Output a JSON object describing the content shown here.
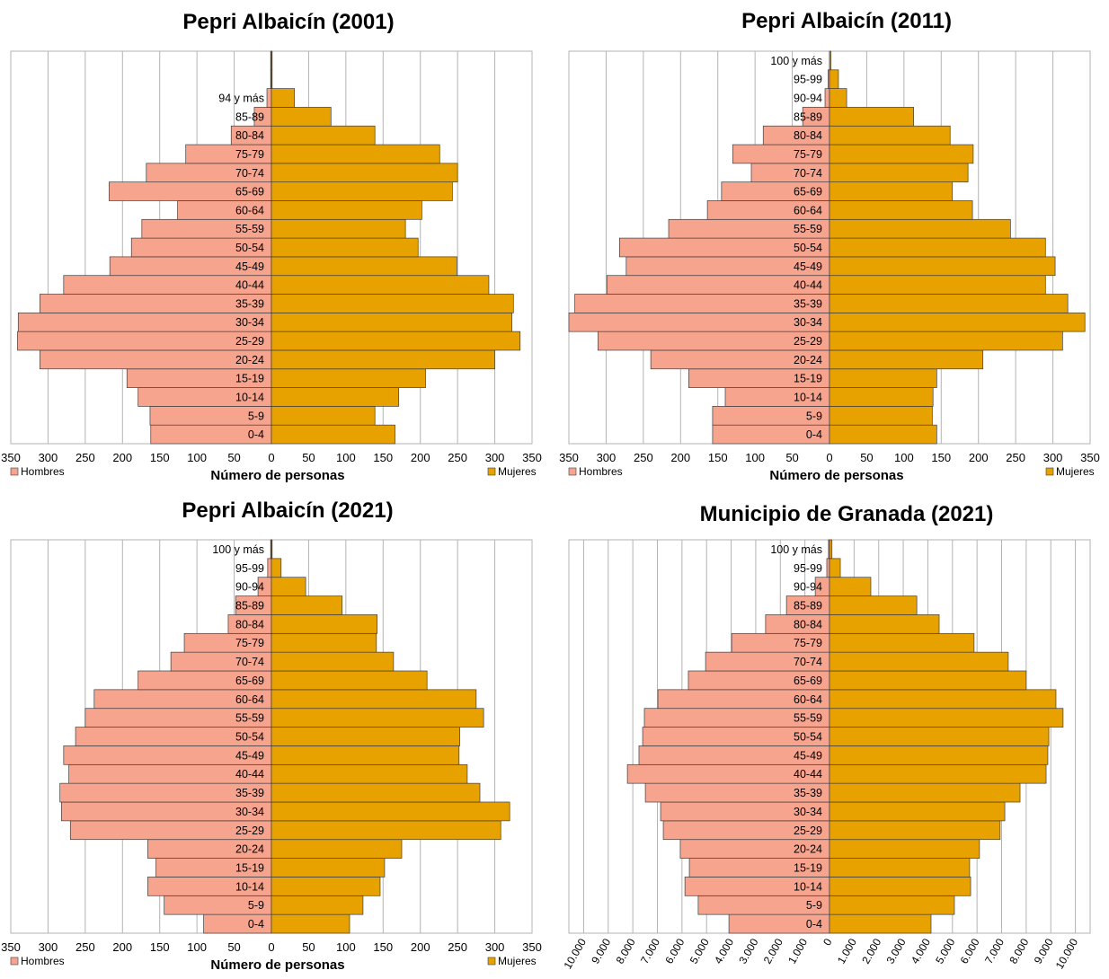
{
  "chart_data": [
    {
      "type": "bar",
      "orientation": "horizontal",
      "mirrored": true,
      "title": "Pepri Albaicín (2001)",
      "xlabel": "Número de personas",
      "xlim": [
        -350,
        350
      ],
      "xticks": [
        -350,
        -300,
        -250,
        -200,
        -150,
        -100,
        -50,
        0,
        50,
        100,
        150,
        200,
        250,
        300,
        350
      ],
      "xtick_labels": [
        "350",
        "300",
        "250",
        "200",
        "150",
        "100",
        "50",
        "0",
        "50",
        "100",
        "150",
        "200",
        "250",
        "300",
        "350"
      ],
      "grid": true,
      "legend": "bottom",
      "categories": [
        "0-4",
        "5-9",
        "10-14",
        "15-19",
        "20-24",
        "25-29",
        "30-34",
        "35-39",
        "40-44",
        "45-49",
        "50-54",
        "55-59",
        "60-64",
        "65-69",
        "70-74",
        "75-79",
        "80-84",
        "85-89",
        "94 y más",
        "",
        ""
      ],
      "series": [
        {
          "name": "Hombres",
          "side": "left",
          "color": "#F7A48F",
          "values": [
            162,
            163,
            179,
            194,
            311,
            341,
            340,
            311,
            279,
            217,
            188,
            174,
            126,
            218,
            168,
            115,
            54,
            23,
            6,
            1,
            1
          ]
        },
        {
          "name": "Mujeres",
          "side": "right",
          "color": "#E8A200",
          "values": [
            166,
            139,
            171,
            207,
            300,
            334,
            323,
            325,
            292,
            249,
            197,
            180,
            202,
            243,
            250,
            226,
            139,
            80,
            31,
            1,
            1
          ]
        }
      ]
    },
    {
      "type": "bar",
      "orientation": "horizontal",
      "mirrored": true,
      "title": "Pepri Albaicín (2011)",
      "xlabel": "Número de personas",
      "xlim": [
        -350,
        350
      ],
      "xticks": [
        -350,
        -300,
        -250,
        -200,
        -150,
        -100,
        -50,
        0,
        50,
        100,
        150,
        200,
        250,
        300,
        350
      ],
      "xtick_labels": [
        "350",
        "300",
        "250",
        "200",
        "150",
        "100",
        "50",
        "0",
        "50",
        "100",
        "150",
        "200",
        "250",
        "300",
        "350"
      ],
      "grid": true,
      "legend": "bottom",
      "categories": [
        "0-4",
        "5-9",
        "10-14",
        "15-19",
        "20-24",
        "25-29",
        "30-34",
        "35-39",
        "40-44",
        "45-49",
        "50-54",
        "55-59",
        "60-64",
        "65-69",
        "70-74",
        "75-79",
        "80-84",
        "85-89",
        "90-94",
        "95-99",
        "100 y más"
      ],
      "series": [
        {
          "name": "Hombres",
          "side": "left",
          "color": "#F7A48F",
          "values": [
            157,
            157,
            140,
            189,
            240,
            311,
            350,
            342,
            299,
            273,
            282,
            216,
            164,
            145,
            105,
            130,
            89,
            36,
            6,
            2,
            0
          ]
        },
        {
          "name": "Mujeres",
          "side": "right",
          "color": "#E8A200",
          "values": [
            144,
            138,
            139,
            144,
            206,
            313,
            343,
            320,
            290,
            303,
            290,
            243,
            192,
            165,
            186,
            193,
            162,
            113,
            23,
            12,
            2
          ]
        }
      ]
    },
    {
      "type": "bar",
      "orientation": "horizontal",
      "mirrored": true,
      "title": "Pepri Albaicín (2021)",
      "xlabel": "Número de personas",
      "xlim": [
        -350,
        350
      ],
      "xticks": [
        -350,
        -300,
        -250,
        -200,
        -150,
        -100,
        -50,
        0,
        50,
        100,
        150,
        200,
        250,
        300,
        350
      ],
      "xtick_labels": [
        "350",
        "300",
        "250",
        "200",
        "150",
        "100",
        "50",
        "0",
        "50",
        "100",
        "150",
        "200",
        "250",
        "300",
        "350"
      ],
      "grid": true,
      "legend": "bottom",
      "categories": [
        "0-4",
        "5-9",
        "10-14",
        "15-19",
        "20-24",
        "25-29",
        "30-34",
        "35-39",
        "40-44",
        "45-49",
        "50-54",
        "55-59",
        "60-64",
        "65-69",
        "70-74",
        "75-79",
        "80-84",
        "85-89",
        "90-94",
        "95-99",
        "100 y más"
      ],
      "series": [
        {
          "name": "Hombres",
          "side": "left",
          "color": "#F7A48F",
          "values": [
            91,
            144,
            166,
            155,
            166,
            270,
            282,
            284,
            272,
            279,
            263,
            250,
            238,
            179,
            135,
            117,
            58,
            48,
            18,
            5,
            1
          ]
        },
        {
          "name": "Mujeres",
          "side": "right",
          "color": "#E8A200",
          "values": [
            105,
            123,
            146,
            152,
            175,
            308,
            320,
            280,
            263,
            252,
            253,
            285,
            275,
            209,
            164,
            141,
            142,
            95,
            46,
            13,
            1
          ]
        }
      ]
    },
    {
      "type": "bar",
      "orientation": "horizontal",
      "mirrored": true,
      "title": "Municipio de Granada (2021)",
      "xlabel": "",
      "xlim": [
        -10600,
        10600
      ],
      "xticks": [
        -10000,
        -9000,
        -8000,
        -7000,
        -6000,
        -5000,
        -4000,
        -3000,
        -2000,
        -1000,
        0,
        1000,
        2000,
        3000,
        4000,
        5000,
        6000,
        7000,
        8000,
        9000,
        10000
      ],
      "xtick_labels": [
        "10.000",
        "9.000",
        "8.000",
        "7.000",
        "6.000",
        "5.000",
        "4.000",
        "3.000",
        "2.000",
        "1.000",
        "0",
        "1.000",
        "2.000",
        "3.000",
        "4.000",
        "5.000",
        "6.000",
        "7.000",
        "8.000",
        "9.000",
        "10.000"
      ],
      "grid": true,
      "legend": "none",
      "categories": [
        "0-4",
        "5-9",
        "10-14",
        "15-19",
        "20-24",
        "25-29",
        "30-34",
        "35-39",
        "40-44",
        "45-49",
        "50-54",
        "55-59",
        "60-64",
        "65-69",
        "70-74",
        "75-79",
        "80-84",
        "85-89",
        "90-94",
        "95-99",
        "100 y más"
      ],
      "series": [
        {
          "side": "left",
          "color": "#F7A48F",
          "values": [
            4090,
            5340,
            5880,
            5700,
            6070,
            6760,
            6870,
            7490,
            8220,
            7750,
            7600,
            7530,
            6980,
            5740,
            5040,
            3980,
            2600,
            1750,
            580,
            110,
            40
          ]
        },
        {
          "side": "right",
          "color": "#E8A200",
          "values": [
            4130,
            5080,
            5740,
            5700,
            6100,
            6940,
            7130,
            7750,
            8810,
            8880,
            8920,
            9500,
            9210,
            8000,
            7270,
            5880,
            4460,
            3550,
            1680,
            440,
            100
          ]
        }
      ]
    }
  ]
}
